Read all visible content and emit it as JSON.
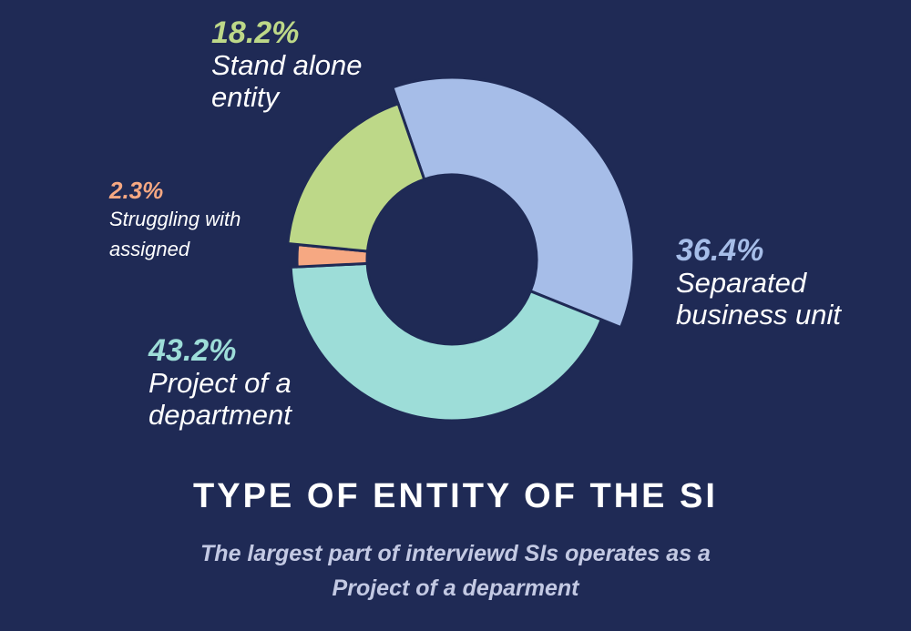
{
  "chart_data": {
    "type": "pie",
    "title": "TYPE OF ENTITY OF THE SI",
    "subtitle": "The largest part of interviewd SIs operates as a\nProject of a deparment",
    "series": [
      {
        "name": "Separated business unit",
        "value": 36.4,
        "label": "36.4%",
        "color": "#a6bde8"
      },
      {
        "name": "Project of a department",
        "value": 43.2,
        "label": "43.2%",
        "color": "#9dddd8"
      },
      {
        "name": "Struggling with assigned",
        "value": 2.3,
        "label": "2.3%",
        "color": "#f6a882"
      },
      {
        "name": "Stand alone entity",
        "value": 18.2,
        "label": "18.2%",
        "color": "#bdd888"
      }
    ]
  }
}
